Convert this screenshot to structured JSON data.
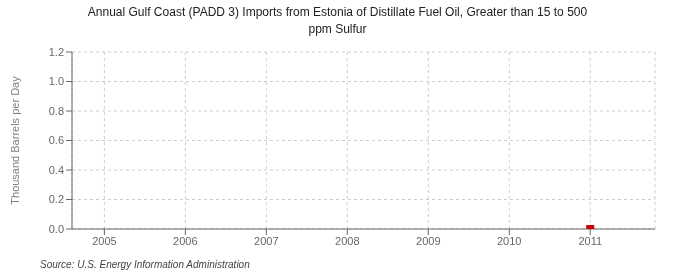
{
  "chart_data": {
    "type": "scatter",
    "title": "Annual Gulf Coast (PADD 3) Imports from Estonia of Distillate Fuel Oil, Greater than 15 to 500\nppm Sulfur",
    "ylabel": "Thousand Barrels per Day",
    "annotations": [
      "Source: U.S. Energy Information Administration"
    ],
    "x": [
      2011
    ],
    "values": [
      0
    ],
    "color": "#cc0000",
    "marker": "square",
    "xlim": [
      2004.6,
      2011.8
    ],
    "ylim": [
      0,
      1.2
    ],
    "xticks": [
      2005,
      2006,
      2007,
      2008,
      2009,
      2010,
      2011
    ],
    "yticks": [
      {
        "value": 0,
        "label": "0.0"
      },
      0.2,
      0.4,
      0.6,
      0.8,
      {
        "value": 1,
        "label": "1.0"
      },
      1.2
    ],
    "grid": true
  }
}
